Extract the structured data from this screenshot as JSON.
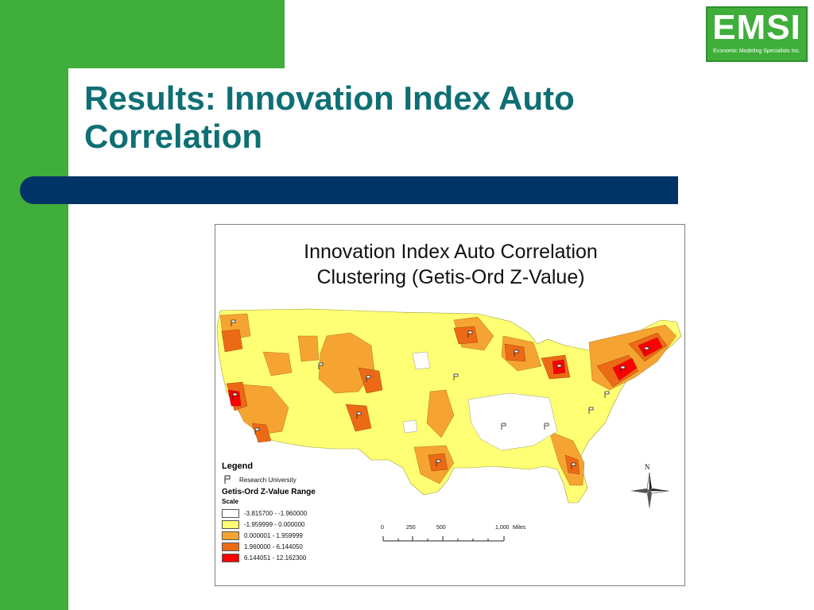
{
  "slide": {
    "title": "Results:  Innovation Index Auto Correlation",
    "logo_text": "EMSI",
    "logo_subtitle": "Economic Modeling Specialists Inc.",
    "colors": {
      "green": "#3fae3a",
      "title_teal": "#0e6f74",
      "bar_navy": "#003466"
    }
  },
  "figure": {
    "title_line1": "Innovation Index Auto Correlation",
    "title_line2": "Clustering (Getis-Ord Z-Value)",
    "legend": {
      "heading": "Legend",
      "symbol_label": "Research University",
      "range_heading": "Getis-Ord Z-Value Range",
      "scale_label": "Scale",
      "classes": [
        {
          "label": "-3.815700 - -1.960000",
          "color": "#ffffff"
        },
        {
          "label": "-1.959999 - 0.000000",
          "color": "#ffff73"
        },
        {
          "label": "0.000001 - 1.959999",
          "color": "#f5a431"
        },
        {
          "label": "1.960000 - 6.144050",
          "color": "#ec6a16"
        },
        {
          "label": "6.144051 - 12.162300",
          "color": "#ff0000"
        }
      ]
    },
    "scale_bar": {
      "ticks": [
        "0",
        "250",
        "500",
        "1,000"
      ],
      "unit": "Miles"
    },
    "north_label": "N"
  }
}
